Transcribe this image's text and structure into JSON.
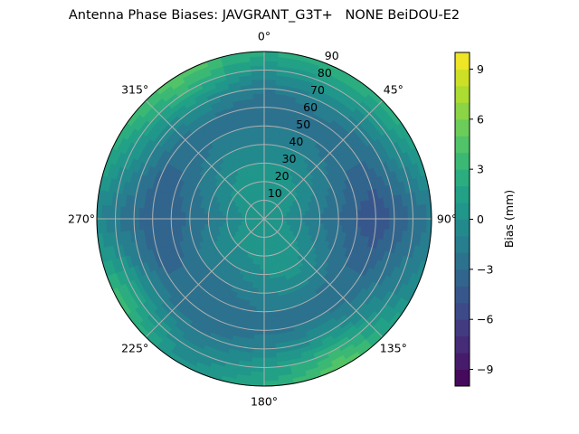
{
  "chart_data": {
    "type": "heatmap",
    "subtype": "polar-contour",
    "title": "Antenna Phase Biases: JAVGRANT_G3T+   NONE BeiDOU-E2",
    "angular_ticks": [
      "0°",
      "45°",
      "90°",
      "135°",
      "180°",
      "225°",
      "270°",
      "315°"
    ],
    "radial_ticks": [
      "10",
      "20",
      "30",
      "40",
      "50",
      "60",
      "70",
      "80",
      "90"
    ],
    "radial_range": [
      0,
      90
    ],
    "angular_direction": "clockwise",
    "zero_location": "north",
    "grid": true,
    "colorbar": {
      "label": "Bias (mm)",
      "range": [
        -10,
        10
      ],
      "level_step": 1,
      "ticks": [
        "−9",
        "−6",
        "−3",
        "0",
        "3",
        "6",
        "9"
      ],
      "tick_values": [
        -9,
        -6,
        -3,
        0,
        3,
        6,
        9
      ],
      "colormap": "viridis",
      "placement": "right"
    },
    "zenith": [
      0,
      10,
      20,
      30,
      40,
      50,
      60,
      70,
      80,
      90
    ],
    "azimuth": [
      0,
      30,
      60,
      90,
      120,
      150,
      180,
      210,
      240,
      270,
      300,
      330
    ],
    "values": [
      [
        0.5,
        0.5,
        0.5,
        0,
        -1,
        -2,
        -3,
        -2,
        0,
        2
      ],
      [
        0.5,
        0.5,
        0.5,
        0,
        -1,
        -2,
        -2.5,
        -1,
        1,
        3
      ],
      [
        0.5,
        0.5,
        0,
        -1,
        -2,
        -3,
        -3,
        -2,
        0,
        2
      ],
      [
        0.5,
        0,
        -1,
        -2,
        -3,
        -4,
        -5,
        -4,
        -3,
        -2
      ],
      [
        0.5,
        0.5,
        0,
        -1,
        -2,
        -3,
        -3,
        -2,
        -1,
        0
      ],
      [
        0.5,
        1,
        1,
        0.5,
        -0.5,
        -2,
        -2,
        0,
        3,
        5
      ],
      [
        0.5,
        0.5,
        0.5,
        0,
        -1,
        -2,
        -2.5,
        -1,
        1,
        2
      ],
      [
        0.5,
        0.5,
        0,
        -1,
        -2,
        -3,
        -3,
        -2,
        -1,
        0
      ],
      [
        0.5,
        0.5,
        0,
        -1,
        -2,
        -3,
        -3,
        -1,
        2,
        4
      ],
      [
        0.5,
        0,
        -1,
        -2,
        -3,
        -3.5,
        -4,
        -3,
        -2,
        -1
      ],
      [
        0.5,
        0.5,
        0,
        -1,
        -2,
        -3,
        -3,
        -1,
        1,
        3
      ],
      [
        0.5,
        0.5,
        0.5,
        0,
        -1,
        -2,
        -2,
        0,
        3,
        5
      ]
    ]
  }
}
